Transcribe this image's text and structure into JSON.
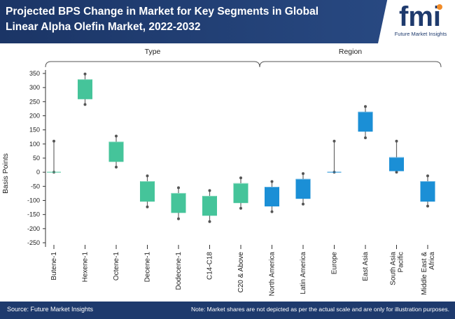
{
  "header": {
    "title": "Projected BPS Change in Market for Key Segments in Global Linear Alpha Olefin Market, 2022-2032",
    "logo_text": "fmi",
    "logo_subtitle": "Future Market Insights"
  },
  "footer": {
    "source": "Source: Future Market Insights",
    "note": "Note: Market shares are not depicted as per the actual scale and are only for illustration purposes."
  },
  "colors": {
    "header_bg": "#1e3a6d",
    "type_color": "#45c49a",
    "region_color": "#1b8fd6"
  },
  "chart_data": {
    "type": "box",
    "title": "Projected BPS Change in Market for Key Segments in Global Linear Alpha Olefin Market, 2022-2032",
    "ylabel": "Basis Points",
    "xlabel": "",
    "ylim": [
      -250,
      350
    ],
    "yticks": [
      350,
      300,
      250,
      200,
      150,
      100,
      50,
      0,
      -50,
      -100,
      -150,
      -200,
      -250
    ],
    "groups": [
      {
        "label": "Type",
        "start": 0,
        "end": 7
      },
      {
        "label": "Region",
        "start": 8,
        "end": 13
      }
    ],
    "categories": [
      {
        "name": "Butene-1",
        "group": "Type",
        "whisker_low": 0,
        "box_low": 0,
        "box_high": 0,
        "whisker_high": 110
      },
      {
        "name": "Hexene-1",
        "group": "Type",
        "whisker_low": 240,
        "box_low": 260,
        "box_high": 328,
        "whisker_high": 348
      },
      {
        "name": "Octene-1",
        "group": "Type",
        "whisker_low": 18,
        "box_low": 38,
        "box_high": 107,
        "whisker_high": 128
      },
      {
        "name": "Decene-1",
        "group": "Type",
        "whisker_low": -123,
        "box_low": -103,
        "box_high": -33,
        "whisker_high": -13
      },
      {
        "name": "Dodecene-1",
        "group": "Type",
        "whisker_low": -165,
        "box_low": -143,
        "box_high": -75,
        "whisker_high": -55
      },
      {
        "name": "C14-C18",
        "group": "Type",
        "whisker_low": -175,
        "box_low": -153,
        "box_high": -85,
        "whisker_high": -65
      },
      {
        "name": "C20 & Above",
        "group": "Type",
        "whisker_low": -128,
        "box_low": -108,
        "box_high": -40,
        "whisker_high": -20
      },
      {
        "name": "North America",
        "group": "Region",
        "whisker_low": -140,
        "box_low": -120,
        "box_high": -53,
        "whisker_high": -33
      },
      {
        "name": "Latin America",
        "group": "Region",
        "whisker_low": -113,
        "box_low": -93,
        "box_high": -25,
        "whisker_high": -5
      },
      {
        "name": "Europe",
        "group": "Region",
        "whisker_low": 0,
        "box_low": 0,
        "box_high": 0,
        "whisker_high": 110
      },
      {
        "name": "East Asia",
        "group": "Region",
        "whisker_low": 122,
        "box_low": 145,
        "box_high": 213,
        "whisker_high": 233
      },
      {
        "name": "South Asia Pacific",
        "group": "Region",
        "whisker_low": 0,
        "box_low": 5,
        "box_high": 52,
        "whisker_high": 110
      },
      {
        "name": "Middle East & Africa",
        "group": "Region",
        "whisker_low": -120,
        "box_low": -103,
        "box_high": -33,
        "whisker_high": -13
      }
    ]
  }
}
